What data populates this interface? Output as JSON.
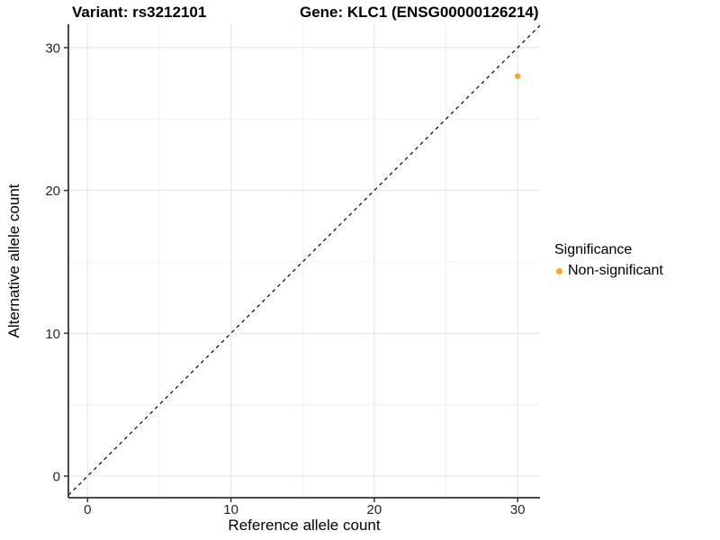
{
  "chart_data": {
    "type": "scatter",
    "title_left": "Variant: rs3212101",
    "title_right": "Gene: KLC1 (ENSG00000126214)",
    "xlabel": "Reference allele count",
    "ylabel": "Alternative allele count",
    "xlim": [
      -1.35,
      31.6
    ],
    "ylim": [
      -1.55,
      31.6
    ],
    "x_ticks": [
      0,
      10,
      20,
      30
    ],
    "y_ticks": [
      0,
      10,
      20,
      30
    ],
    "minor_ticks": [
      5,
      15,
      25
    ],
    "grid": true,
    "points": [
      {
        "x": 30,
        "y": 28,
        "series": "Non-significant"
      }
    ],
    "reference_line": {
      "type": "identity",
      "slope": 1,
      "intercept": 0,
      "style": "dashed"
    },
    "legend": {
      "position": "right",
      "title": "Significance",
      "items": [
        {
          "label": "Non-significant",
          "color": "#FAA32C"
        }
      ]
    },
    "colors": {
      "point": "#FAA32C",
      "grid_major": "#E3E3E3",
      "grid_minor": "#F0F0F0",
      "axis": "#333333",
      "tick_text": "#262626",
      "reference_line": "#111111"
    }
  }
}
